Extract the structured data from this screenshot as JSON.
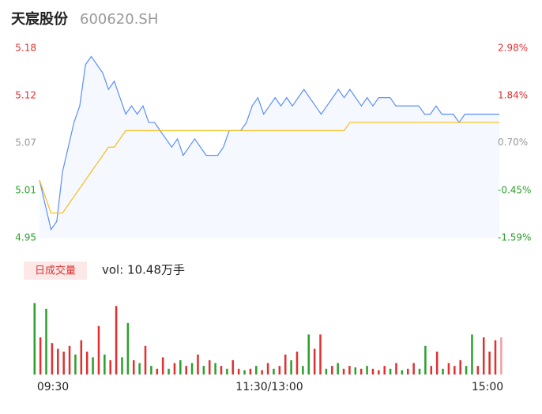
{
  "header": {
    "name": "天宸股份",
    "code": "600620.SH"
  },
  "chart_data": [
    {
      "type": "line",
      "x": [
        0,
        3,
        6,
        9,
        12,
        15,
        18,
        21,
        24,
        27,
        30,
        33,
        36,
        39,
        42,
        45,
        48,
        51,
        54,
        57,
        60,
        63,
        66,
        69,
        72,
        75,
        78,
        81,
        84,
        87,
        90,
        93,
        96,
        99,
        102,
        105,
        108,
        111,
        114,
        117,
        120,
        123,
        126,
        129,
        132,
        135,
        138,
        141,
        144,
        147,
        150,
        153,
        156,
        159,
        162,
        165,
        168,
        171,
        174,
        177,
        180,
        183,
        186,
        189,
        192,
        195,
        198,
        201,
        204,
        207,
        210,
        213,
        216,
        219,
        222,
        225,
        228,
        231,
        234,
        237,
        240
      ],
      "xlim": [
        0,
        240
      ],
      "xticks": [
        {
          "value": 0,
          "label": "09:30"
        },
        {
          "value": 120,
          "label": "11:30/13:00"
        },
        {
          "value": 240,
          "label": "15:00"
        }
      ],
      "ylim": [
        4.95,
        5.18
      ],
      "yticks": [
        {
          "value": 4.95,
          "label": "4.95"
        },
        {
          "value": 5.0075,
          "label": "5.01"
        },
        {
          "value": 5.065,
          "label": "5.07"
        },
        {
          "value": 5.1225,
          "label": "5.12"
        },
        {
          "value": 5.18,
          "label": "5.18"
        }
      ],
      "y2lim": [
        -1.59,
        2.98
      ],
      "y2ticks": [
        {
          "value": -1.59,
          "label": "-1.59%"
        },
        {
          "value": -0.45,
          "label": "-0.45%"
        },
        {
          "value": 0.7,
          "label": "0.70%"
        },
        {
          "value": 1.84,
          "label": "1.84%"
        },
        {
          "value": 2.98,
          "label": "2.98%"
        }
      ],
      "series": [
        {
          "color": "#5b8ff9",
          "values": [
            5.02,
            4.99,
            4.96,
            4.97,
            5.03,
            5.06,
            5.09,
            5.11,
            5.16,
            5.17,
            5.16,
            5.15,
            5.13,
            5.14,
            5.12,
            5.1,
            5.11,
            5.1,
            5.11,
            5.09,
            5.09,
            5.08,
            5.07,
            5.06,
            5.07,
            5.05,
            5.06,
            5.07,
            5.06,
            5.05,
            5.05,
            5.05,
            5.06,
            5.08,
            5.08,
            5.08,
            5.09,
            5.11,
            5.12,
            5.1,
            5.11,
            5.12,
            5.11,
            5.12,
            5.11,
            5.12,
            5.13,
            5.12,
            5.11,
            5.1,
            5.11,
            5.12,
            5.13,
            5.12,
            5.13,
            5.12,
            5.11,
            5.12,
            5.11,
            5.12,
            5.12,
            5.12,
            5.11,
            5.11,
            5.11,
            5.11,
            5.11,
            5.1,
            5.1,
            5.11,
            5.1,
            5.1,
            5.1,
            5.09,
            5.1,
            5.1,
            5.1,
            5.1,
            5.1,
            5.1,
            5.1
          ]
        },
        {
          "color": "#f6bd16",
          "values": [
            5.02,
            5.0,
            4.98,
            4.98,
            4.98,
            4.99,
            5.0,
            5.01,
            5.02,
            5.03,
            5.04,
            5.05,
            5.06,
            5.06,
            5.07,
            5.08,
            5.08,
            5.08,
            5.08,
            5.08,
            5.08,
            5.08,
            5.08,
            5.08,
            5.08,
            5.08,
            5.08,
            5.08,
            5.08,
            5.08,
            5.08,
            5.08,
            5.08,
            5.08,
            5.08,
            5.08,
            5.08,
            5.08,
            5.08,
            5.08,
            5.08,
            5.08,
            5.08,
            5.08,
            5.08,
            5.08,
            5.08,
            5.08,
            5.08,
            5.08,
            5.08,
            5.08,
            5.08,
            5.08,
            5.09,
            5.09,
            5.09,
            5.09,
            5.09,
            5.09,
            5.09,
            5.09,
            5.09,
            5.09,
            5.09,
            5.09,
            5.09,
            5.09,
            5.09,
            5.09,
            5.09,
            5.09,
            5.09,
            5.09,
            5.09,
            5.09,
            5.09,
            5.09,
            5.09,
            5.09,
            5.09
          ]
        }
      ]
    },
    {
      "type": "bar",
      "legend": "日成交量",
      "label": "vol: 10.48万手",
      "ylim": [
        0,
        2600
      ],
      "values": [
        2500,
        1300,
        2300,
        1100,
        900,
        800,
        1000,
        700,
        1200,
        800,
        600,
        1700,
        700,
        500,
        2400,
        600,
        1800,
        500,
        400,
        1000,
        300,
        200,
        600,
        200,
        400,
        500,
        300,
        400,
        700,
        300,
        500,
        400,
        300,
        200,
        500,
        200,
        150,
        200,
        300,
        150,
        400,
        200,
        300,
        700,
        500,
        800,
        300,
        1400,
        900,
        1400,
        200,
        300,
        400,
        200,
        300,
        250,
        200,
        300,
        200,
        150,
        300,
        200,
        400,
        150,
        200,
        400,
        200,
        1000,
        300,
        800,
        200,
        400,
        300,
        500,
        300,
        1400,
        300,
        1300,
        800,
        1200,
        1300
      ],
      "bar_colors": [
        "#2ca02c",
        "#e03030",
        "#2ca02c",
        "#e03030",
        "#e03030",
        "#e03030",
        "#e03030",
        "#2ca02c",
        "#e03030",
        "#e03030",
        "#2ca02c",
        "#e03030",
        "#2ca02c",
        "#e03030",
        "#e03030",
        "#2ca02c",
        "#2ca02c",
        "#e03030",
        "#2ca02c",
        "#e03030",
        "#2ca02c",
        "#e03030",
        "#e03030",
        "#2ca02c",
        "#e03030",
        "#2ca02c",
        "#e03030",
        "#2ca02c",
        "#e03030",
        "#2ca02c",
        "#e03030",
        "#2ca02c",
        "#e03030",
        "#2ca02c",
        "#e03030",
        "#e03030",
        "#2ca02c",
        "#e03030",
        "#2ca02c",
        "#e03030",
        "#e03030",
        "#2ca02c",
        "#e03030",
        "#e03030",
        "#2ca02c",
        "#e03030",
        "#2ca02c",
        "#2ca02c",
        "#e03030",
        "#e03030",
        "#2ca02c",
        "#e03030",
        "#2ca02c",
        "#e03030",
        "#e03030",
        "#2ca02c",
        "#e03030",
        "#2ca02c",
        "#e03030",
        "#e03030",
        "#e03030",
        "#2ca02c",
        "#e03030",
        "#2ca02c",
        "#e03030",
        "#e03030",
        "#2ca02c",
        "#2ca02c",
        "#e03030",
        "#e03030",
        "#2ca02c",
        "#e03030",
        "#e03030",
        "#e03030",
        "#2ca02c",
        "#2ca02c",
        "#e03030",
        "#e03030",
        "#e03030",
        "#e03030",
        "#f0a0a0"
      ]
    }
  ]
}
